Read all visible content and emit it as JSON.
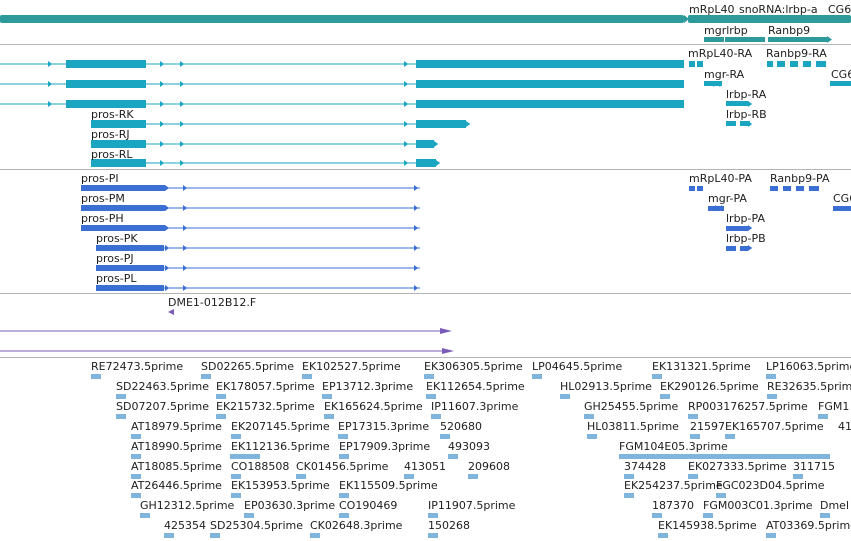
{
  "colors": {
    "gene": "#2e9a9a",
    "transcript": "#1aa6c1",
    "protein": "#3b6fd4",
    "misc": "#7a5cb8",
    "est": "#7fb4dc",
    "divider": "#b4b4b4"
  },
  "tracks": {
    "gene": {
      "labels": [
        {
          "id": "mrpl40",
          "text": "mRpL40"
        },
        {
          "id": "snorna",
          "text": "snoRNA:lrbp-a"
        },
        {
          "id": "cg6",
          "text": "CG6"
        },
        {
          "id": "mgrlrbp",
          "text": "mgrlrbp"
        },
        {
          "id": "ranbp9",
          "text": "Ranbp9"
        }
      ]
    },
    "transcript": {
      "labels": [
        {
          "id": "mrpl40-ra",
          "text": "mRpL40-RA"
        },
        {
          "id": "ranbp9-ra",
          "text": "Ranbp9-RA"
        },
        {
          "id": "mgr-ra",
          "text": "mgr-RA"
        },
        {
          "id": "cg6",
          "text": "CG6"
        },
        {
          "id": "pros-rk",
          "text": "pros-RK"
        },
        {
          "id": "lrbp-ra",
          "text": "lrbp-RA"
        },
        {
          "id": "lrbp-rb",
          "text": "lrbp-RB"
        },
        {
          "id": "pros-rj",
          "text": "pros-RJ"
        },
        {
          "id": "pros-rl",
          "text": "pros-RL"
        }
      ]
    },
    "protein": {
      "labels": [
        {
          "id": "pros-pi",
          "text": "pros-PI"
        },
        {
          "id": "mrpl40-pa",
          "text": "mRpL40-PA"
        },
        {
          "id": "ranbp9-pa",
          "text": "Ranbp9-PA"
        },
        {
          "id": "pros-pm",
          "text": "pros-PM"
        },
        {
          "id": "mgr-pa",
          "text": "mgr-PA"
        },
        {
          "id": "cg6",
          "text": "CG6"
        },
        {
          "id": "pros-ph",
          "text": "pros-PH"
        },
        {
          "id": "lrbp-pa",
          "text": "lrbp-PA"
        },
        {
          "id": "pros-pk",
          "text": "pros-PK"
        },
        {
          "id": "lrbp-pb",
          "text": "lrbp-PB"
        },
        {
          "id": "pros-pj",
          "text": "pros-PJ"
        },
        {
          "id": "pros-pl",
          "text": "pros-PL"
        }
      ]
    },
    "clone": {
      "labels": [
        {
          "id": "dme1",
          "text": "DME1-012B12.F"
        }
      ]
    },
    "est": {
      "labels": [
        {
          "id": "re72473",
          "text": "RE72473.5prime"
        },
        {
          "id": "sd02265",
          "text": "SD02265.5prime"
        },
        {
          "id": "ek102527",
          "text": "EK102527.5prime"
        },
        {
          "id": "ek306305",
          "text": "EK306305.5prime"
        },
        {
          "id": "lp04645",
          "text": "LP04645.5prime"
        },
        {
          "id": "ek131321",
          "text": "EK131321.5prime"
        },
        {
          "id": "lp16063",
          "text": "LP16063.5prime"
        },
        {
          "id": "sd22463",
          "text": "SD22463.5prime"
        },
        {
          "id": "ek178057",
          "text": "EK178057.5prime"
        },
        {
          "id": "ep13712",
          "text": "EP13712.3prime"
        },
        {
          "id": "ek112654",
          "text": "EK112654.5prime"
        },
        {
          "id": "hl02913",
          "text": "HL02913.5prime"
        },
        {
          "id": "ek290126",
          "text": "EK290126.5prime"
        },
        {
          "id": "re32635",
          "text": "RE32635.5prime"
        },
        {
          "id": "sd07207",
          "text": "SD07207.5prime"
        },
        {
          "id": "ek215732",
          "text": "EK215732.5prime"
        },
        {
          "id": "ek165624",
          "text": "EK165624.5prime"
        },
        {
          "id": "ip11607",
          "text": "IP11607.3prime"
        },
        {
          "id": "gh25455",
          "text": "GH25455.5prime"
        },
        {
          "id": "rp003176257",
          "text": "RP003176257.5prime"
        },
        {
          "id": "fgm1",
          "text": "FGM1"
        },
        {
          "id": "at18979",
          "text": "AT18979.5prime"
        },
        {
          "id": "ek207145",
          "text": "EK207145.5prime"
        },
        {
          "id": "ep17315",
          "text": "EP17315.3prime"
        },
        {
          "id": "n520680",
          "text": "520680"
        },
        {
          "id": "hl03811",
          "text": "HL03811.5prime"
        },
        {
          "id": "n21597",
          "text": "21597"
        },
        {
          "id": "ek165707",
          "text": "EK165707.5prime"
        },
        {
          "id": "n41",
          "text": "41"
        },
        {
          "id": "at18990",
          "text": "AT18990.5prime"
        },
        {
          "id": "ek112136",
          "text": "EK112136.5prime"
        },
        {
          "id": "ep17909",
          "text": "EP17909.3prime"
        },
        {
          "id": "n493093",
          "text": "493093"
        },
        {
          "id": "fgm104e05",
          "text": "FGM104E05.3prime"
        },
        {
          "id": "at18085",
          "text": "AT18085.5prime"
        },
        {
          "id": "co188508",
          "text": "CO188508"
        },
        {
          "id": "ck01456",
          "text": "CK01456.5prime"
        },
        {
          "id": "n413051",
          "text": "413051"
        },
        {
          "id": "n209608",
          "text": "209608"
        },
        {
          "id": "n374428",
          "text": "374428"
        },
        {
          "id": "ek027333",
          "text": "EK027333.5prime"
        },
        {
          "id": "n311715",
          "text": "311715"
        },
        {
          "id": "at26446",
          "text": "AT26446.5prime"
        },
        {
          "id": "ek153953",
          "text": "EK153953.5prime"
        },
        {
          "id": "ek115509",
          "text": "EK115509.5prime"
        },
        {
          "id": "ek254237",
          "text": "EK254237.5prime"
        },
        {
          "id": "fgc023d04",
          "text": "FGC023D04.5prime"
        },
        {
          "id": "gh12312",
          "text": "GH12312.5prime"
        },
        {
          "id": "ep03630",
          "text": "EP03630.3prime"
        },
        {
          "id": "co190469",
          "text": "CO190469"
        },
        {
          "id": "ip11907",
          "text": "IP11907.5prime"
        },
        {
          "id": "n187370",
          "text": "187370"
        },
        {
          "id": "fgm003c01",
          "text": "FGM003C01.3prime"
        },
        {
          "id": "dmel",
          "text": "Dmel"
        },
        {
          "id": "n425354",
          "text": "425354"
        },
        {
          "id": "sd25304",
          "text": "SD25304.5prime"
        },
        {
          "id": "ck02648",
          "text": "CK02648.3prime"
        },
        {
          "id": "n150268",
          "text": "150268"
        },
        {
          "id": "ek145938",
          "text": "EK145938.5prime"
        },
        {
          "id": "at03369",
          "text": "AT03369.5prime"
        }
      ]
    }
  }
}
